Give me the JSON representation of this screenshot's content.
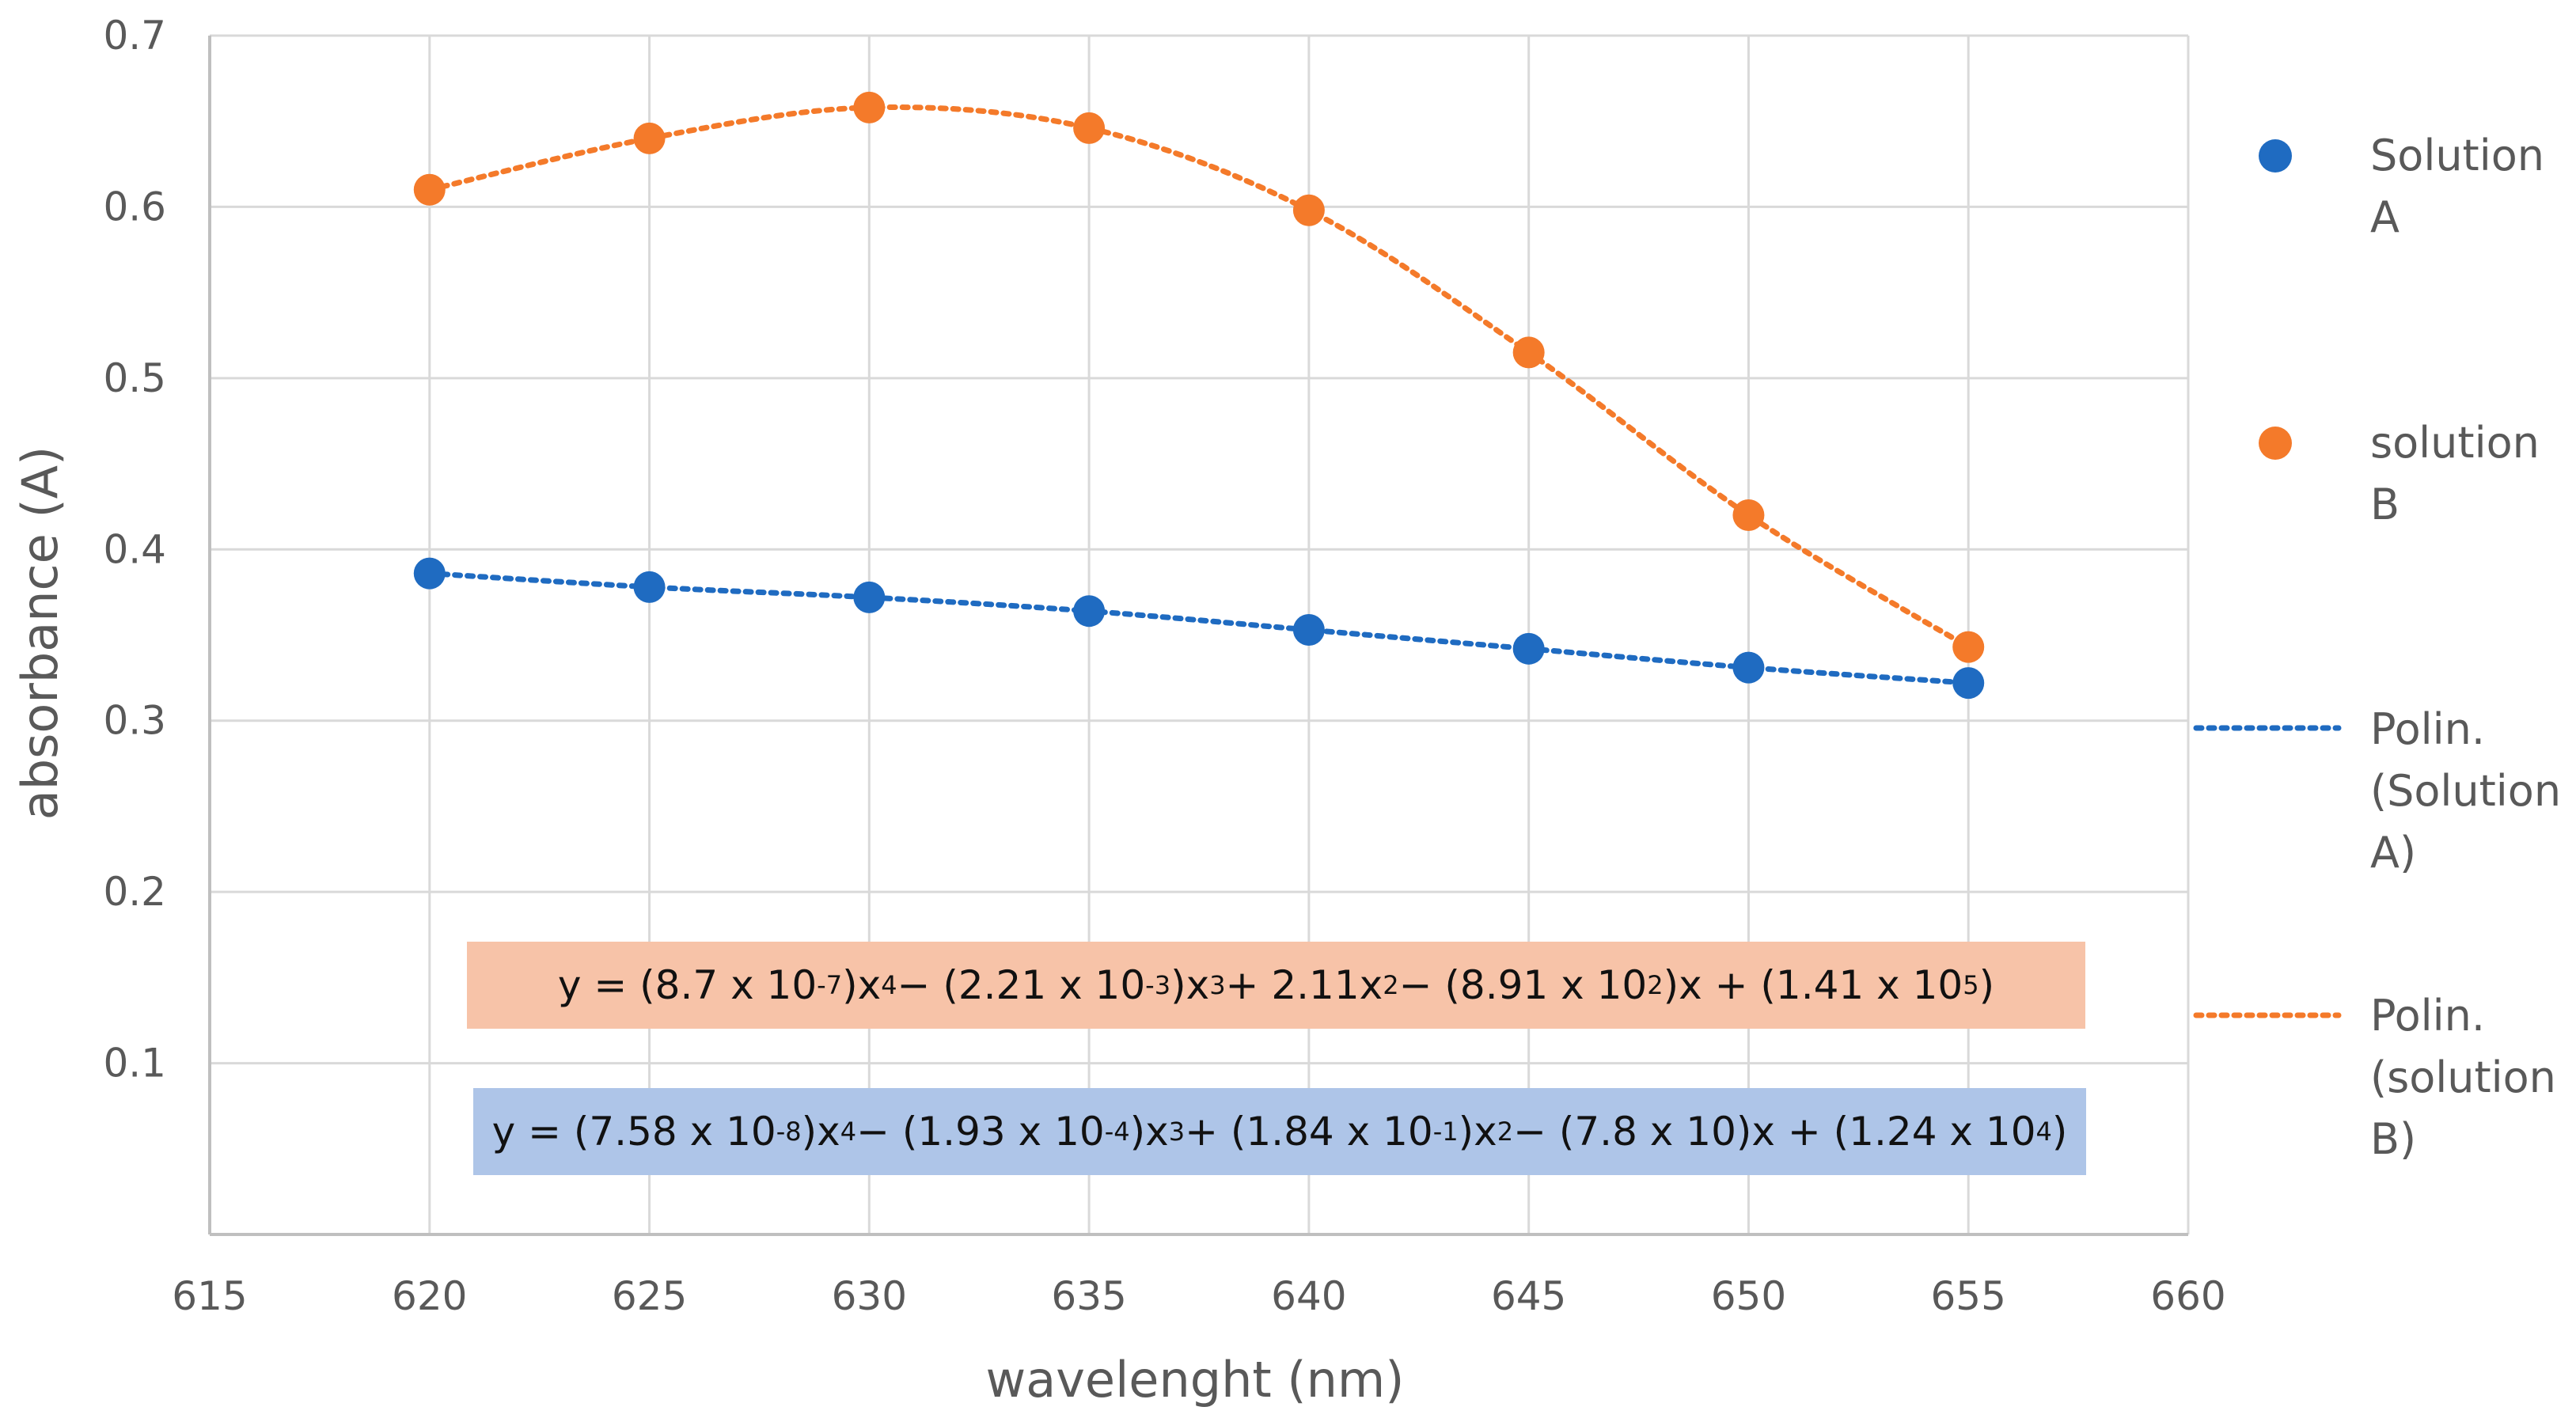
{
  "chart_data": {
    "type": "scatter",
    "title": "",
    "xlabel": "wavelenght (nm)",
    "ylabel": "absorbance (A)",
    "xlim": [
      615,
      660
    ],
    "ylim": [
      0,
      0.7
    ],
    "xticks": [
      615,
      620,
      625,
      630,
      635,
      640,
      645,
      650,
      655,
      660
    ],
    "yticks": [
      0.1,
      0.2,
      0.3,
      0.4,
      0.5,
      0.6,
      0.7
    ],
    "xtick_labels": [
      "615",
      "620",
      "625",
      "630",
      "635",
      "640",
      "645",
      "650",
      "655",
      "660"
    ],
    "ytick_labels": [
      "0.1",
      "0.2",
      "0.3",
      "0.4",
      "0.5",
      "0.6",
      "0.7"
    ],
    "grid": true,
    "legend_position": "right",
    "x": [
      620,
      625,
      630,
      635,
      640,
      645,
      650,
      655
    ],
    "series": [
      {
        "name": "Solution A",
        "legend_lines": [
          "Solution",
          "A"
        ],
        "color": "#1f6bc1",
        "values": [
          0.386,
          0.378,
          0.372,
          0.364,
          0.353,
          0.342,
          0.331,
          0.322
        ],
        "trendline": {
          "name": "Polin. (Solution A)",
          "legend_lines": [
            "Polin.",
            "(Solution",
            "A)"
          ],
          "color": "#1f6bc1",
          "style": "dotted"
        }
      },
      {
        "name": "solution B",
        "legend_lines": [
          "solution",
          "B"
        ],
        "color": "#f47a2a",
        "values": [
          0.61,
          0.64,
          0.658,
          0.646,
          0.598,
          0.515,
          0.42,
          0.343
        ],
        "trendline": {
          "name": "Polin. (solution B)",
          "legend_lines": [
            "Polin.",
            "(solution",
            "B)"
          ],
          "color": "#f47a2a",
          "style": "dotted"
        }
      }
    ],
    "annotations": [
      {
        "id": "eq_b",
        "color": "#f7c3a8",
        "parts": [
          {
            "t": "y = (8.7 x 10"
          },
          {
            "sup": "-7"
          },
          {
            "t": ")x"
          },
          {
            "sup": "4"
          },
          {
            "t": " − (2.21 x 10"
          },
          {
            "sup": "-3"
          },
          {
            "t": ")x"
          },
          {
            "sup": "3"
          },
          {
            "t": " + 2.11x"
          },
          {
            "sup": "2"
          },
          {
            "t": " − (8.91 x 10"
          },
          {
            "sup": "2"
          },
          {
            "t": ")x + (1.41 x 10"
          },
          {
            "sup": "5"
          },
          {
            "t": ")"
          }
        ]
      },
      {
        "id": "eq_a",
        "color": "#aec5e8",
        "parts": [
          {
            "t": "y = (7.58 x 10"
          },
          {
            "sup": "-8"
          },
          {
            "t": ")x"
          },
          {
            "sup": "4"
          },
          {
            "t": " − (1.93 x 10"
          },
          {
            "sup": "-4"
          },
          {
            "t": ")x"
          },
          {
            "sup": "3"
          },
          {
            "t": " + (1.84 x 10"
          },
          {
            "sup": "-1"
          },
          {
            "t": ")x"
          },
          {
            "sup": "2"
          },
          {
            "t": " − (7.8 x 10)x + (1.24 x 10"
          },
          {
            "sup": "4"
          },
          {
            "t": ")"
          }
        ]
      }
    ]
  }
}
